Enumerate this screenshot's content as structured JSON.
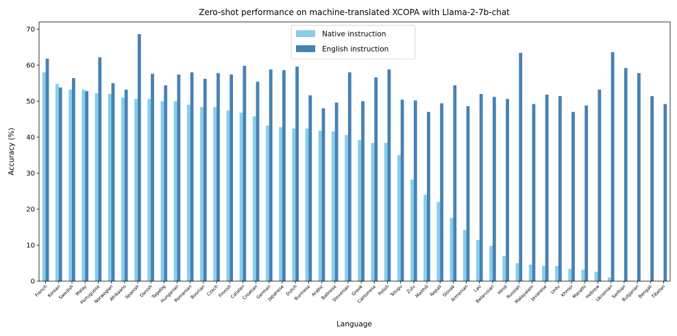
{
  "chart_data": {
    "type": "bar",
    "title": "Zero-shot performance on machine-translated XCOPA with Llama-2-7b-chat",
    "xlabel": "Language",
    "ylabel": "Accuracy (%)",
    "ylim": [
      0,
      72
    ],
    "yticks": [
      0,
      10,
      20,
      30,
      40,
      50,
      60,
      70
    ],
    "grid": false,
    "legend_position": "top-center",
    "categories": [
      "French",
      "Korean",
      "Swedish",
      "Malay",
      "Portuguese",
      "Norwegian",
      "Afrikaans",
      "Spanish",
      "Danish",
      "Tagalog",
      "Hungarian",
      "Romanian",
      "Bosnian",
      "Czech",
      "Finnish",
      "Catalan",
      "Croatian",
      "German",
      "Japanese",
      "Dutch",
      "Burmese",
      "Arabic",
      "Balinese",
      "Slovenian",
      "Greek",
      "Cantonese",
      "Polish",
      "Telugu",
      "Zulu",
      "Maithili",
      "Nepali",
      "Slovak",
      "Armenian",
      "Lao",
      "Belarusian",
      "Hindi",
      "Russian",
      "Malayalam",
      "Javanese",
      "Urdu",
      "Khmer",
      "Marathi",
      "Hebrew",
      "Ukrainian",
      "Serbian",
      "Bulgarian",
      "Bengali",
      "Tibetan"
    ],
    "series": [
      {
        "name": "Native instruction",
        "color": "#87CEEB",
        "values": [
          58.0,
          54.8,
          53.2,
          53.2,
          52.2,
          52.0,
          51.0,
          50.6,
          50.6,
          50.0,
          50.0,
          49.0,
          48.4,
          48.4,
          47.4,
          46.8,
          45.8,
          43.2,
          42.8,
          42.4,
          42.4,
          41.8,
          41.6,
          40.6,
          39.2,
          38.4,
          38.4,
          35.0,
          28.2,
          24.0,
          22.0,
          17.6,
          14.2,
          11.4,
          9.8,
          7.0,
          5.0,
          4.6,
          4.2,
          4.2,
          3.4,
          3.2,
          2.6,
          1.0,
          0.0,
          0.0,
          0.0,
          0.0
        ]
      },
      {
        "name": "English instruction",
        "color": "#4682B4",
        "values": [
          61.8,
          53.8,
          56.4,
          52.8,
          62.2,
          55.0,
          53.2,
          68.6,
          57.6,
          54.4,
          57.4,
          58.0,
          56.2,
          57.8,
          57.4,
          59.8,
          55.4,
          58.8,
          58.6,
          59.6,
          51.6,
          48.0,
          49.6,
          58.0,
          50.0,
          56.6,
          58.8,
          50.4,
          50.2,
          47.0,
          49.4,
          54.4,
          48.6,
          52.0,
          51.2,
          50.6,
          63.4,
          49.2,
          51.8,
          51.4,
          47.0,
          48.8,
          53.2,
          63.6,
          59.2,
          57.8,
          51.4,
          49.2
        ]
      }
    ]
  }
}
